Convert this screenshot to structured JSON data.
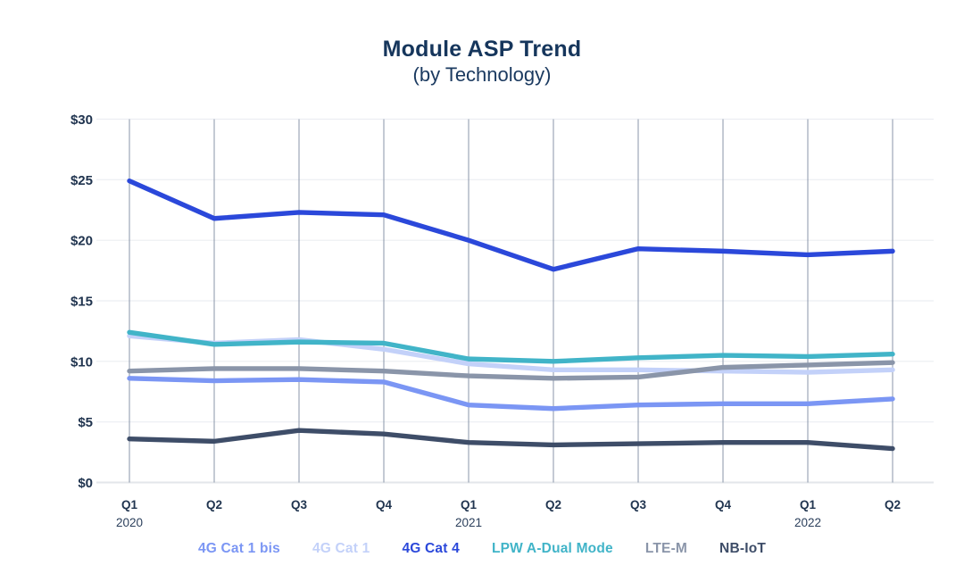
{
  "chart": {
    "title": "Module ASP Trend",
    "subtitle": "(by Technology)"
  },
  "chart_data": {
    "type": "line",
    "title": "Module ASP Trend",
    "subtitle": "(by Technology)",
    "x_categories": [
      "Q1",
      "Q2",
      "Q3",
      "Q4",
      "Q1",
      "Q2",
      "Q3",
      "Q4",
      "Q1",
      "Q2"
    ],
    "x_year_labels": [
      {
        "index": 0,
        "year": "2020"
      },
      {
        "index": 4,
        "year": "2021"
      },
      {
        "index": 8,
        "year": "2022"
      }
    ],
    "y_ticks": [
      {
        "label": "$30",
        "value": 30
      },
      {
        "label": "$25",
        "value": 25
      },
      {
        "label": "$20",
        "value": 20
      },
      {
        "label": "$15",
        "value": 15
      },
      {
        "label": "$10",
        "value": 10
      },
      {
        "label": "$5",
        "value": 5
      },
      {
        "label": "$0",
        "value": 0
      }
    ],
    "ylim": [
      0,
      30
    ],
    "currency_prefix": "$",
    "grid": {
      "horizontal": true,
      "vertical": true
    },
    "legend_position": "bottom",
    "series": [
      {
        "name": "4G Cat 1 bis",
        "slug": "4g-cat-1-bis",
        "color": "#7b96f4",
        "z": 4,
        "values": [
          8.6,
          8.4,
          8.5,
          8.3,
          6.4,
          6.1,
          6.4,
          6.5,
          6.5,
          6.9
        ]
      },
      {
        "name": "4G Cat 1",
        "slug": "4g-cat-1",
        "color": "#c3d1f9",
        "z": 1,
        "values": [
          12.1,
          11.5,
          11.8,
          11.0,
          9.8,
          9.3,
          9.3,
          9.2,
          9.1,
          9.3
        ]
      },
      {
        "name": "4G Cat 4",
        "slug": "4g-cat-4",
        "color": "#2b48da",
        "z": 6,
        "values": [
          24.9,
          21.8,
          22.3,
          22.1,
          20.0,
          17.6,
          19.3,
          19.1,
          18.8,
          19.1
        ]
      },
      {
        "name": "LPW A-Dual Mode",
        "slug": "lpw-a-dual-mode",
        "color": "#41b4c8",
        "z": 3,
        "values": [
          12.4,
          11.4,
          11.6,
          11.5,
          10.2,
          10.0,
          10.3,
          10.5,
          10.4,
          10.6
        ]
      },
      {
        "name": "LTE-M",
        "slug": "lte-m",
        "color": "#8a95a9",
        "z": 2,
        "values": [
          9.2,
          9.4,
          9.4,
          9.2,
          8.8,
          8.6,
          8.7,
          9.5,
          9.7,
          9.9
        ]
      },
      {
        "name": "NB-IoT",
        "slug": "nb-iot",
        "color": "#3e4d68",
        "z": 5,
        "values": [
          3.6,
          3.4,
          4.3,
          4.0,
          3.3,
          3.1,
          3.2,
          3.3,
          3.3,
          2.8
        ]
      }
    ],
    "colors": {
      "grid_horizontal": "#eceef2",
      "grid_vertical": "#76839a",
      "baseline": "#e3e6ea",
      "axis_text": "#20344f",
      "title_text": "#16365c"
    }
  }
}
